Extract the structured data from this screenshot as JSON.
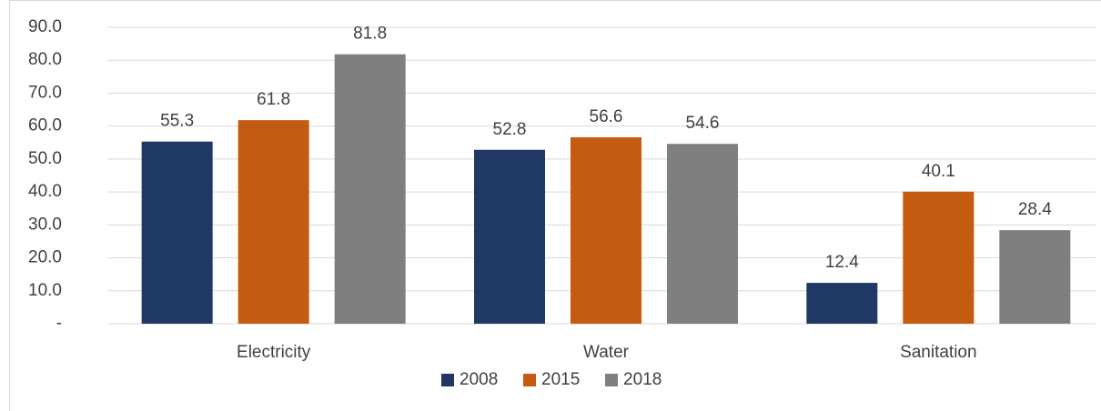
{
  "chart_data": {
    "type": "bar",
    "categories": [
      "Electricity",
      "Water",
      "Sanitation"
    ],
    "series": [
      {
        "name": "2008",
        "color": "#203864",
        "values": [
          55.3,
          52.8,
          12.4
        ]
      },
      {
        "name": "2015",
        "color": "#c55a11",
        "values": [
          61.8,
          56.6,
          40.1
        ]
      },
      {
        "name": "2018",
        "color": "#7f7f7f",
        "values": [
          81.8,
          54.6,
          28.4
        ]
      }
    ],
    "ylim": [
      0,
      90
    ],
    "yticks": [
      {
        "value": 0,
        "label": "-"
      },
      {
        "value": 10,
        "label": "10.0"
      },
      {
        "value": 20,
        "label": "20.0"
      },
      {
        "value": 30,
        "label": "30.0"
      },
      {
        "value": 40,
        "label": "40.0"
      },
      {
        "value": 50,
        "label": "50.0"
      },
      {
        "value": 60,
        "label": "60.0"
      },
      {
        "value": 70,
        "label": "70.0"
      },
      {
        "value": 80,
        "label": "80.0"
      },
      {
        "value": 90,
        "label": "90.0"
      }
    ],
    "grid": true,
    "legend": "bottom"
  }
}
